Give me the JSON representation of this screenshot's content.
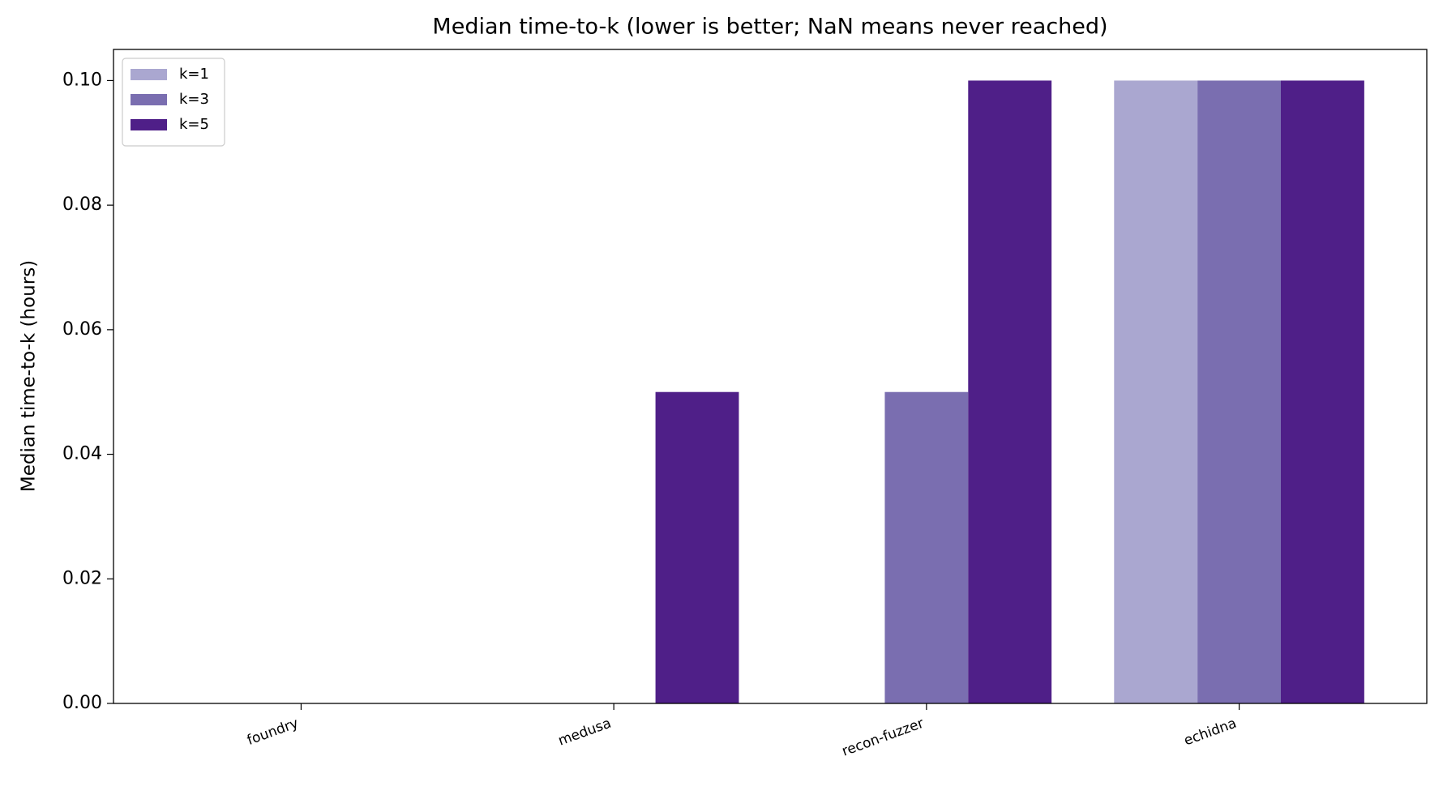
{
  "chart_data": {
    "type": "bar",
    "title": "Median time-to-k (lower is better; NaN means never reached)",
    "y_label": "Median time-to-k (hours)",
    "categories": [
      "foundry",
      "medusa",
      "recon-fuzzer",
      "echidna"
    ],
    "series": [
      {
        "name": "k=1",
        "color": "#aaa7d0",
        "values": [
          null,
          null,
          null,
          0.1
        ]
      },
      {
        "name": "k=3",
        "color": "#7a6eb0",
        "values": [
          null,
          null,
          0.05,
          0.1
        ]
      },
      {
        "name": "k=5",
        "color": "#4f1f88",
        "values": [
          null,
          0.05,
          0.1,
          0.1
        ]
      }
    ],
    "ylim": [
      0,
      0.105
    ],
    "yticks": [
      {
        "value": 0,
        "label": "0.00"
      },
      0.02,
      0.04,
      0.06,
      0.08,
      {
        "value": 0.1,
        "label": "0.10"
      }
    ],
    "legend": "upper left",
    "grid": false
  }
}
